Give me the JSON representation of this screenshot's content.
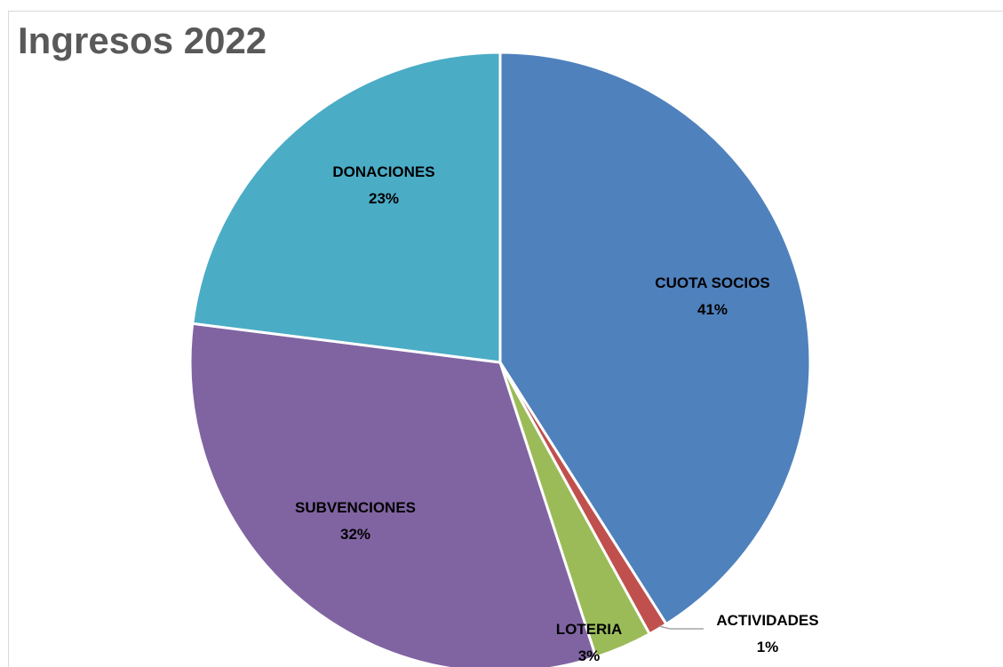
{
  "chart_data": {
    "type": "pie",
    "title": "Ingresos 2022",
    "slices": [
      {
        "label": "CUOTA SOCIOS",
        "value": 41,
        "display": "41%",
        "color": "#4f81bd"
      },
      {
        "label": "ACTIVIDADES",
        "value": 1,
        "display": "1%",
        "color": "#c0504d"
      },
      {
        "label": "LOTERIA",
        "value": 3,
        "display": "3%",
        "color": "#9bbb59"
      },
      {
        "label": "SUBVENCIONES",
        "value": 32,
        "display": "32%",
        "color": "#8064a2"
      },
      {
        "label": "DONACIONES",
        "value": 23,
        "display": "23%",
        "color": "#4bacc6"
      }
    ],
    "start": "12 o'clock",
    "direction": "clockwise",
    "legend": "none",
    "data_labels": "category name and percentage"
  }
}
